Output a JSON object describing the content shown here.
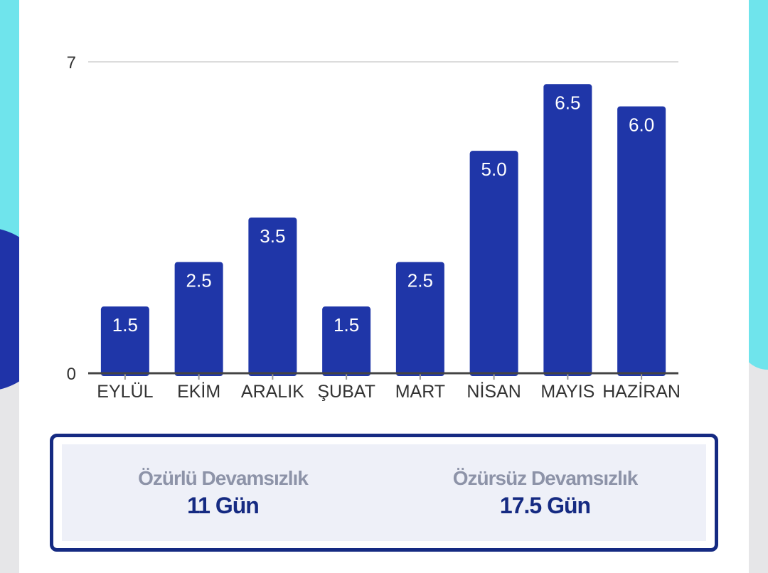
{
  "chart_data": {
    "type": "bar",
    "categories": [
      "EYLÜL",
      "EKİM",
      "ARALIK",
      "ŞUBAT",
      "MART",
      "NİSAN",
      "MAYIS",
      "HAZİRAN"
    ],
    "values": [
      1.5,
      2.5,
      3.5,
      1.5,
      2.5,
      5.0,
      6.5,
      6.0
    ],
    "data_labels": [
      "1.5",
      "2.5",
      "3.5",
      "1.5",
      "2.5",
      "5.0",
      "6.5",
      "6.0"
    ],
    "y_ticks": [
      "0",
      "7"
    ],
    "ylim": [
      0,
      7
    ],
    "title": "",
    "xlabel": "",
    "ylabel": "",
    "bar_color": "#1f36a8",
    "grid": true
  },
  "summary": {
    "excused_label": "Özürlü Devamsızlık",
    "excused_value": "11 Gün",
    "unexcused_label": "Özürsüz Devamsızlık",
    "unexcused_value": "17.5 Gün"
  },
  "colors": {
    "accent": "#152a82",
    "bar": "#1f36a8",
    "background_cyan": "#6fe4ec",
    "background_navy": "#1f33a8"
  }
}
